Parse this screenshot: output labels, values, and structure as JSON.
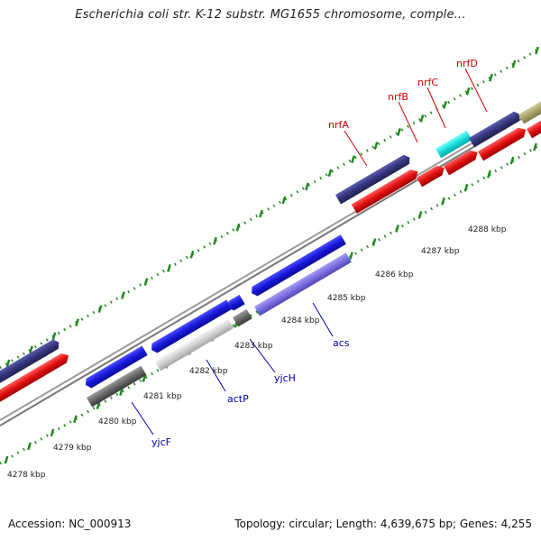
{
  "title": "Escherichia coli str. K-12 substr. MG1655 chromosome, comple...",
  "footer": {
    "accession": "Accession: NC_000913",
    "summary": "Topology: circular; Length: 4,639,675 bp; Genes: 4,255"
  },
  "colors": {
    "forward_gene": "#2b2bdc",
    "forward_gene_alt": "#3a3a88",
    "reverse_gene": "#e01a1a",
    "reverse_gene_alt": "#7b6fd8",
    "gray_gene": "#666666",
    "highlight_gene": "#19e0e0",
    "olive_gene": "#a9a36b",
    "tick": "#1f8a1f",
    "label_red": "#cc0000",
    "label_blue": "#0000aa",
    "backbone": "#8a8a8a"
  },
  "scale_labels": [
    "4278 kbp",
    "4279 kbp",
    "4280 kbp",
    "4281 kbp",
    "4282 kbp",
    "4283 kbp",
    "4284 kbp",
    "4285 kbp",
    "4286 kbp",
    "4287 kbp",
    "4288 kbp"
  ],
  "gene_labels": [
    {
      "name": "nrfA",
      "strand": "top"
    },
    {
      "name": "nrfB",
      "strand": "top"
    },
    {
      "name": "nrfC",
      "strand": "top"
    },
    {
      "name": "nrfD",
      "strand": "top"
    },
    {
      "name": "yjcF",
      "strand": "bottom"
    },
    {
      "name": "actP",
      "strand": "bottom"
    },
    {
      "name": "yjcH",
      "strand": "bottom"
    },
    {
      "name": "acs",
      "strand": "bottom"
    }
  ]
}
